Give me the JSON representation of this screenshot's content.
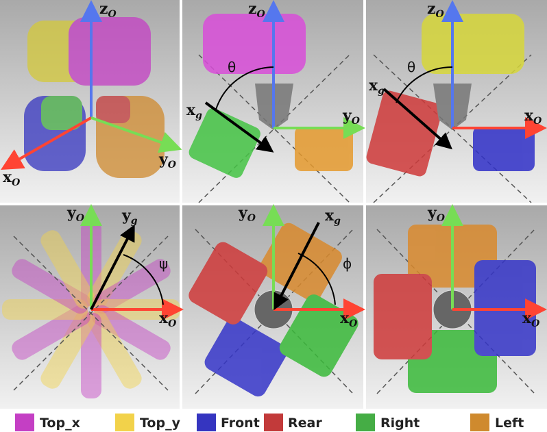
{
  "panels": [
    {
      "labels": [
        {
          "main": "z",
          "sub": "O"
        },
        {
          "main": "y",
          "sub": "O"
        },
        {
          "main": "x",
          "sub": "O"
        }
      ]
    },
    {
      "labels": [
        {
          "main": "z",
          "sub": "O"
        },
        {
          "main": "y",
          "sub": "O"
        },
        {
          "main": "x",
          "sub": "g"
        },
        {
          "main": "θ"
        }
      ]
    },
    {
      "labels": [
        {
          "main": "z",
          "sub": "O"
        },
        {
          "main": "x",
          "sub": "O"
        },
        {
          "main": "x",
          "sub": "g"
        },
        {
          "main": "θ"
        }
      ]
    },
    {
      "labels": [
        {
          "main": "y",
          "sub": "O"
        },
        {
          "main": "y",
          "sub": "g"
        },
        {
          "main": "x",
          "sub": "O"
        },
        {
          "main": "ψ"
        }
      ]
    },
    {
      "labels": [
        {
          "main": "y",
          "sub": "O"
        },
        {
          "main": "x",
          "sub": "g"
        },
        {
          "main": "x",
          "sub": "O"
        },
        {
          "main": "ϕ"
        }
      ]
    },
    {
      "labels": [
        {
          "main": "y",
          "sub": "O"
        },
        {
          "main": "x",
          "sub": "O"
        }
      ]
    }
  ],
  "legend": [
    {
      "label": "Top_x",
      "color": "#c43fc4"
    },
    {
      "label": "Top_y",
      "color": "#f2d24a"
    },
    {
      "label": "Front",
      "color": "#3535c0"
    },
    {
      "label": "Rear",
      "color": "#c23a3a"
    },
    {
      "label": "Right",
      "color": "#45ad45"
    },
    {
      "label": "Left",
      "color": "#cf8a2e"
    }
  ]
}
